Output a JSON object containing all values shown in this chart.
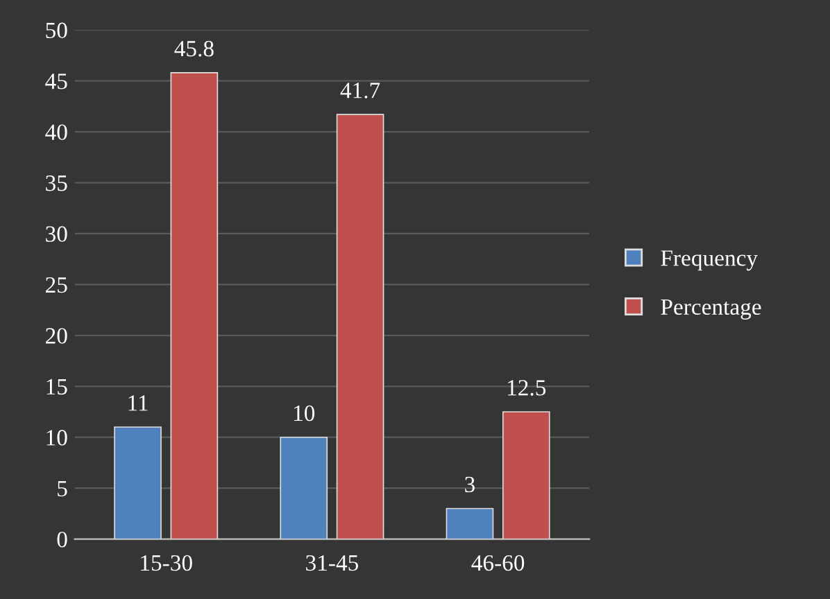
{
  "chart_data": {
    "type": "bar",
    "categories": [
      "15-30",
      "31-45",
      "46-60"
    ],
    "series": [
      {
        "name": "Frequency",
        "color": "#4f81bd",
        "values": [
          11,
          10,
          3
        ]
      },
      {
        "name": "Percentage",
        "color": "#c0504d",
        "values": [
          45.8,
          41.7,
          12.5
        ]
      }
    ],
    "ylim": [
      0,
      50
    ],
    "yticks": [
      0,
      5,
      10,
      15,
      20,
      25,
      30,
      35,
      40,
      45,
      50
    ],
    "grid": "y",
    "legend": "right",
    "data_labels": true
  }
}
